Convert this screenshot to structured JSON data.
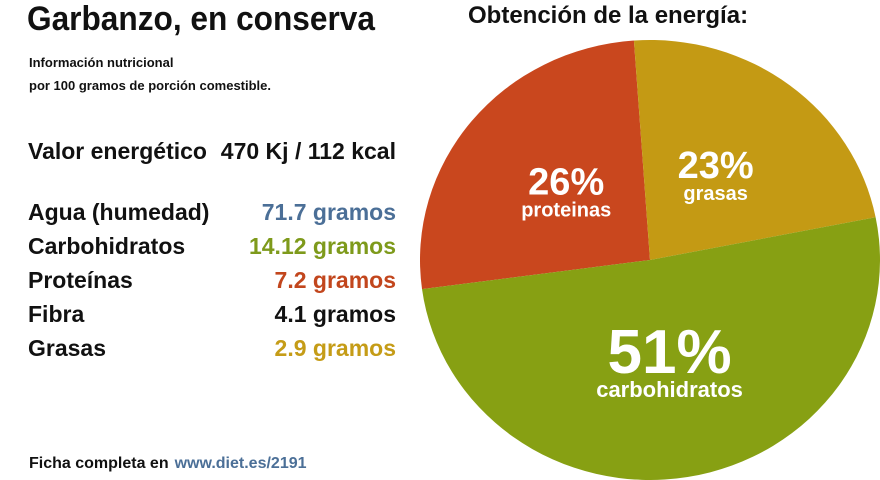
{
  "title": "Garbanzo, en conserva",
  "subtitle_line1": "Información nutricional",
  "subtitle_line2": "por 100 gramos de porción comestible.",
  "energy": {
    "label": "Valor energético",
    "value": "470 Kj / 112 kcal"
  },
  "nutrients": [
    {
      "label": "Agua (humedad)",
      "value": "71.7 gramos",
      "color": "#4b6f97"
    },
    {
      "label": "Carbohidratos",
      "value": "14.12 gramos",
      "color": "#7e9a1b"
    },
    {
      "label": "Proteínas",
      "value": "7.2 gramos",
      "color": "#c2461d"
    },
    {
      "label": "Fibra",
      "value": "4.1 gramos",
      "color": "#111111"
    },
    {
      "label": "Grasas",
      "value": "2.9 gramos",
      "color": "#c59c17"
    }
  ],
  "footer": {
    "text": "Ficha completa en",
    "link": "www.diet.es/2191"
  },
  "pie_title": "Obtención de la energía:",
  "chart_data": {
    "type": "pie",
    "title": "Obtención de la energía:",
    "slices": [
      {
        "label": "proteinas",
        "pct_label": "26%",
        "value": 26,
        "color": "#c9471e"
      },
      {
        "label": "grasas",
        "pct_label": "23%",
        "value": 23,
        "color": "#c49a14"
      },
      {
        "label": "carbohidratos",
        "pct_label": "51%",
        "value": 51,
        "color": "#87a013"
      }
    ]
  }
}
